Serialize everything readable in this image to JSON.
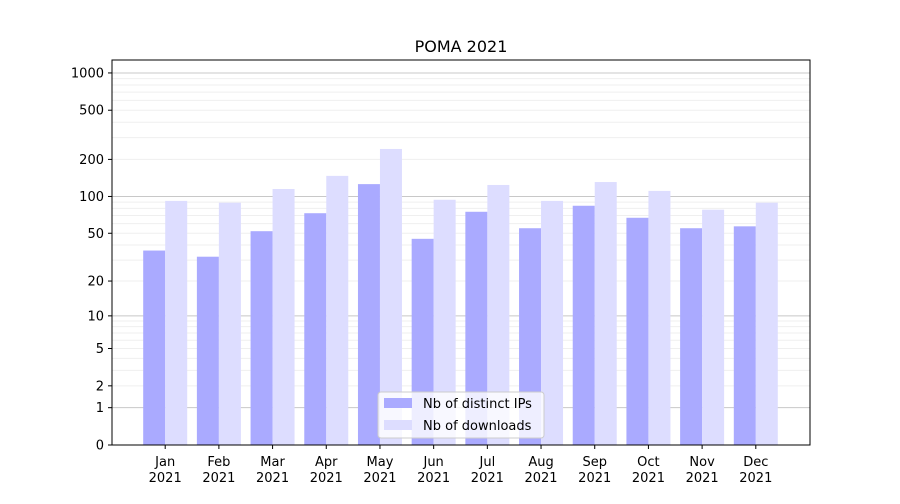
{
  "chart_data": {
    "type": "bar",
    "title": "POMA 2021",
    "xlabel": "",
    "ylabel": "",
    "yscale": "log(1+x)",
    "ylim": [
      0,
      1300
    ],
    "yticks": [
      0,
      1,
      2,
      5,
      10,
      20,
      50,
      100,
      200,
      500,
      1000
    ],
    "ytick_labels": [
      "0",
      "1",
      "2",
      "5",
      "10",
      "20",
      "50",
      "100",
      "200",
      "500",
      "1000"
    ],
    "categories": [
      "Jan",
      "Feb",
      "Mar",
      "Apr",
      "May",
      "Jun",
      "Jul",
      "Aug",
      "Sep",
      "Oct",
      "Nov",
      "Dec"
    ],
    "category_year": "2021",
    "grid": true,
    "legend_position": "bottom-center",
    "series": [
      {
        "name": "Nb of distinct IPs",
        "color": "#aaaaff",
        "values": [
          36,
          32,
          52,
          73,
          126,
          45,
          75,
          55,
          84,
          67,
          55,
          57
        ]
      },
      {
        "name": "Nb of downloads",
        "color": "#ddddff",
        "values": [
          92,
          89,
          115,
          147,
          243,
          94,
          124,
          92,
          131,
          111,
          78,
          89
        ]
      }
    ]
  }
}
